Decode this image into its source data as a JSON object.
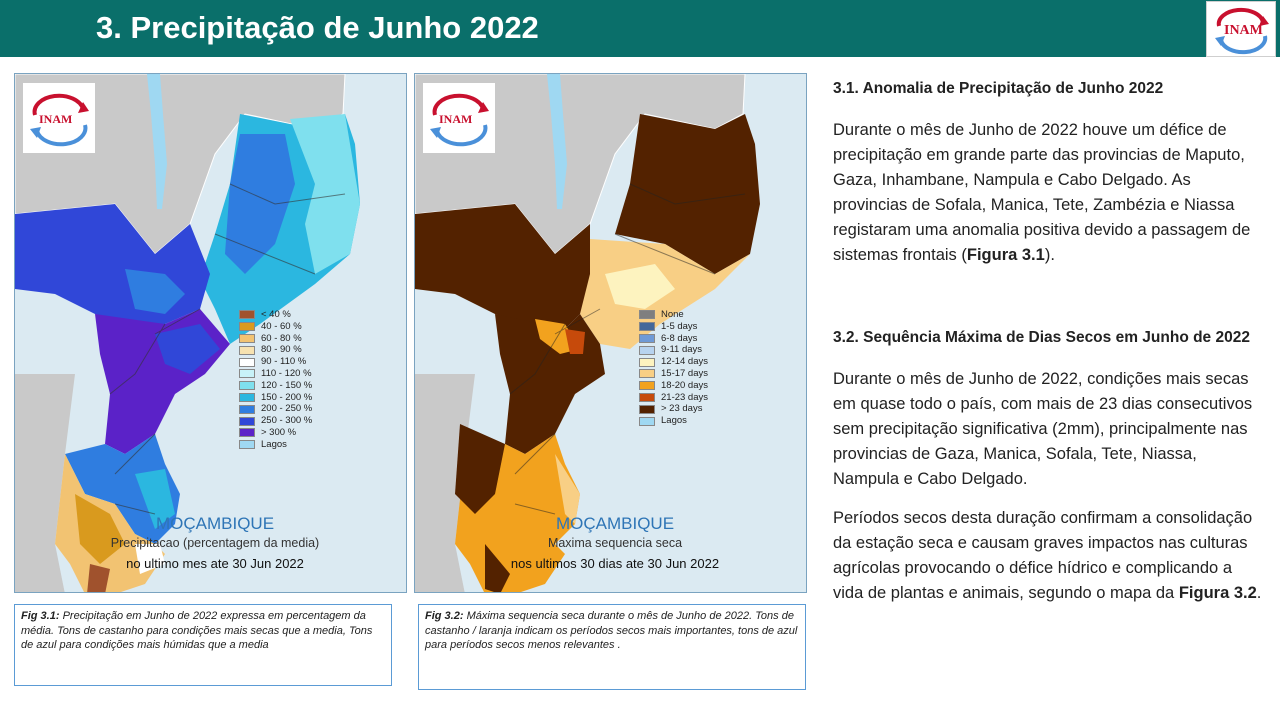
{
  "header": {
    "title": "3. Precipitação de Junho 2022",
    "logo_text": "INAM"
  },
  "map1": {
    "logo_text": "INAM",
    "legend": [
      {
        "label": "< 40 %",
        "color": "#a0522d"
      },
      {
        "label": "40 - 60 %",
        "color": "#d99a1e"
      },
      {
        "label": "60 - 80 %",
        "color": "#f2c372"
      },
      {
        "label": "80 - 90 %",
        "color": "#f7e2b0"
      },
      {
        "label": "90 - 110 %",
        "color": "#ffffff"
      },
      {
        "label": "110 - 120 %",
        "color": "#c8f2f8"
      },
      {
        "label": "120 - 150 %",
        "color": "#7fe0ee"
      },
      {
        "label": "150 - 200 %",
        "color": "#2bb7e0"
      },
      {
        "label": "200 - 250 %",
        "color": "#2f7de0"
      },
      {
        "label": "250 - 300 %",
        "color": "#3047d8"
      },
      {
        "label": "> 300 %",
        "color": "#5b22c8"
      },
      {
        "label": "Lagos",
        "color": "#9fd8f2"
      }
    ],
    "country": "MOÇAMBIQUE",
    "subtitle": "Precipitacao (percentagem da media)",
    "date": "no ultimo mes ate 30 Jun 2022"
  },
  "map2": {
    "logo_text": "INAM",
    "legend": [
      {
        "label": "None",
        "color": "#7f7f7f"
      },
      {
        "label": "1-5 days",
        "color": "#44689a"
      },
      {
        "label": "6-8 days",
        "color": "#6f9ad6"
      },
      {
        "label": "9-11 days",
        "color": "#b7d3ef"
      },
      {
        "label": "12-14 days",
        "color": "#fdf3bf"
      },
      {
        "label": "15-17 days",
        "color": "#f8cf85"
      },
      {
        "label": "18-20 days",
        "color": "#f2a21e"
      },
      {
        "label": "21-23 days",
        "color": "#c64a0b"
      },
      {
        "label": "> 23 days",
        "color": "#532200"
      },
      {
        "label": "Lagos",
        "color": "#9fd8f2"
      }
    ],
    "country": "MOÇAMBIQUE",
    "subtitle": "Maxima sequencia seca",
    "date": "nos ultimos 30 dias ate 30 Jun 2022"
  },
  "captions": {
    "fig1_label": "Fig 3.1:",
    "fig1_text": "Precipitação em Junho de 2022 expressa em percentagem da média. Tons de castanho para condições mais secas que a media, Tons de azul para condições mais húmidas que a media",
    "fig2_label": "Fig 3.2:",
    "fig2_text": "Máxima sequencia seca durante o mês de Junho de 2022. Tons de castanho / laranja indicam os períodos secos mais importantes, tons de azul para períodos secos menos relevantes ."
  },
  "section1": {
    "heading": "3.1. Anomalia de Precipitação de Junho 2022",
    "text_before": "Durante o mês de Junho de 2022 houve um défice de precipitação em grande parte das provincias de Maputo, Gaza, Inhambane, Nampula e Cabo Delgado. As provincias de Sofala, Manica, Tete, Zambézia e Niassa registaram uma anomalia positiva devido a passagem de sistemas frontais (",
    "fig_ref": "Figura 3.1",
    "text_after": ")."
  },
  "section2": {
    "heading": "3.2. Sequência Máxima de Dias Secos em Junho de 2022",
    "para1": "Durante o mês de Junho de 2022, condições mais secas em quase todo o país, com mais de 23 dias consecutivos sem precipitação significativa (2mm), principalmente nas provincias de Gaza, Manica, Sofala, Tete, Niassa, Nampula e Cabo Delgado.",
    "para2_before": "Períodos secos desta duração confirmam a consolidação da estação seca e causam graves impactos nas culturas agrícolas provocando o défice hídrico e complicando a vida de plantas e animais, segundo o mapa da ",
    "fig_ref": "Figura 3.2",
    "para2_after": "."
  }
}
